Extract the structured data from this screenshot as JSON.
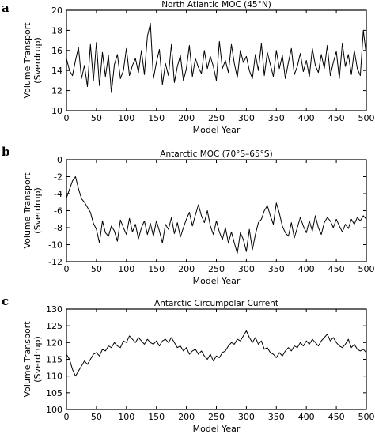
{
  "chart_data": [
    {
      "panel": "a",
      "type": "line",
      "title": "North Atlantic MOC (45°N)",
      "xlabel": "Model Year",
      "ylabel": "Volume Transport (Sverdrup)",
      "ylabel_lines": [
        "Volume Transport",
        "(Sverdrup)"
      ],
      "xlim": [
        0,
        500
      ],
      "ylim": [
        10,
        20
      ],
      "xticks": [
        0,
        50,
        100,
        150,
        200,
        250,
        300,
        350,
        400,
        450,
        500
      ],
      "yticks": [
        10,
        12,
        14,
        16,
        18,
        20
      ],
      "series": [
        {
          "x": [
            0,
            5,
            10,
            15,
            20,
            25,
            30,
            35,
            40,
            45,
            50,
            55,
            60,
            65,
            70,
            75,
            80,
            85,
            90,
            95,
            100,
            105,
            110,
            115,
            120,
            125,
            130,
            135,
            140,
            145,
            150,
            155,
            160,
            165,
            170,
            175,
            180,
            185,
            190,
            195,
            200,
            205,
            210,
            215,
            220,
            225,
            230,
            235,
            240,
            245,
            250,
            255,
            260,
            265,
            270,
            275,
            280,
            285,
            290,
            295,
            300,
            305,
            310,
            315,
            320,
            325,
            330,
            335,
            340,
            345,
            350,
            355,
            360,
            365,
            370,
            375,
            380,
            385,
            390,
            395,
            400,
            405,
            410,
            415,
            420,
            425,
            430,
            435,
            440,
            445,
            450,
            455,
            460,
            465,
            470,
            475,
            480,
            485,
            490,
            495,
            500
          ],
          "y": [
            15.2,
            14.0,
            13.5,
            15.0,
            16.3,
            13.2,
            14.5,
            12.4,
            16.6,
            13.0,
            16.8,
            12.5,
            15.8,
            13.4,
            15.5,
            11.8,
            14.6,
            15.6,
            13.2,
            14.0,
            16.2,
            13.5,
            14.5,
            15.2,
            13.8,
            16.0,
            13.6,
            17.4,
            18.7,
            13.2,
            14.8,
            16.1,
            12.6,
            14.7,
            13.5,
            16.6,
            12.8,
            14.4,
            15.5,
            13.0,
            14.2,
            16.5,
            13.4,
            15.2,
            14.3,
            13.7,
            16.0,
            14.2,
            15.4,
            14.4,
            13.0,
            16.9,
            14.2,
            15.0,
            13.8,
            16.6,
            14.7,
            13.3,
            16.0,
            14.8,
            15.4,
            14.0,
            13.2,
            15.6,
            14.0,
            16.7,
            13.5,
            15.8,
            14.6,
            13.4,
            16.0,
            14.2,
            15.5,
            13.2,
            14.8,
            16.2,
            13.6,
            14.4,
            15.7,
            13.9,
            15.0,
            13.4,
            16.2,
            14.5,
            13.8,
            15.6,
            14.2,
            16.5,
            13.5,
            14.8,
            15.9,
            13.2,
            16.7,
            14.4,
            15.6,
            13.6,
            16.0,
            14.2,
            13.5,
            18.0,
            15.5
          ]
        }
      ]
    },
    {
      "panel": "b",
      "type": "line",
      "title": "Antarctic MOC (70°S–65°S)",
      "xlabel": "Model Year",
      "ylabel": "Volume Transport (Sverdrup)",
      "ylabel_lines": [
        "Volume Transport",
        "(Sverdrup)"
      ],
      "xlim": [
        0,
        500
      ],
      "ylim": [
        -12,
        0
      ],
      "xticks": [
        0,
        50,
        100,
        150,
        200,
        250,
        300,
        350,
        400,
        450,
        500
      ],
      "yticks": [
        -12,
        -10,
        -8,
        -6,
        -4,
        -2,
        0
      ],
      "series": [
        {
          "x": [
            0,
            5,
            10,
            15,
            20,
            25,
            30,
            35,
            40,
            45,
            50,
            55,
            60,
            65,
            70,
            75,
            80,
            85,
            90,
            95,
            100,
            105,
            110,
            115,
            120,
            125,
            130,
            135,
            140,
            145,
            150,
            155,
            160,
            165,
            170,
            175,
            180,
            185,
            190,
            195,
            200,
            205,
            210,
            215,
            220,
            225,
            230,
            235,
            240,
            245,
            250,
            255,
            260,
            265,
            270,
            275,
            280,
            285,
            290,
            295,
            300,
            305,
            310,
            315,
            320,
            325,
            330,
            335,
            340,
            345,
            350,
            355,
            360,
            365,
            370,
            375,
            380,
            385,
            390,
            395,
            400,
            405,
            410,
            415,
            420,
            425,
            430,
            435,
            440,
            445,
            450,
            455,
            460,
            465,
            470,
            475,
            480,
            485,
            490,
            495,
            500
          ],
          "y": [
            -4.5,
            -3.5,
            -2.5,
            -2.0,
            -3.4,
            -4.6,
            -5.0,
            -5.6,
            -6.2,
            -7.5,
            -8.2,
            -9.8,
            -7.2,
            -8.6,
            -9.0,
            -7.8,
            -8.4,
            -9.6,
            -7.1,
            -8.0,
            -8.8,
            -6.9,
            -8.5,
            -7.6,
            -9.3,
            -8.0,
            -7.2,
            -8.8,
            -7.5,
            -9.0,
            -7.2,
            -8.4,
            -9.8,
            -7.6,
            -8.2,
            -6.8,
            -8.7,
            -7.4,
            -9.1,
            -8.0,
            -7.0,
            -6.2,
            -7.8,
            -6.5,
            -5.3,
            -6.6,
            -7.4,
            -6.0,
            -7.8,
            -8.8,
            -7.2,
            -8.5,
            -9.4,
            -8.0,
            -9.8,
            -8.5,
            -9.8,
            -11.0,
            -8.6,
            -9.4,
            -10.8,
            -8.2,
            -10.6,
            -8.8,
            -7.4,
            -7.0,
            -6.0,
            -5.4,
            -6.6,
            -7.6,
            -5.1,
            -6.3,
            -7.8,
            -8.6,
            -9.0,
            -7.4,
            -9.2,
            -8.0,
            -6.8,
            -7.8,
            -8.6,
            -7.2,
            -8.4,
            -6.6,
            -8.0,
            -8.8,
            -7.4,
            -6.8,
            -7.2,
            -8.0,
            -7.0,
            -7.8,
            -8.5,
            -7.6,
            -8.1,
            -7.0,
            -7.6,
            -6.8,
            -7.2,
            -6.6,
            -7.0
          ]
        }
      ]
    },
    {
      "panel": "c",
      "type": "line",
      "title": "Antarctic Circumpolar Current",
      "xlabel": "Model Year",
      "ylabel": "Volume Transport (Sverdrup)",
      "ylabel_lines": [
        "Volume Transport",
        "(Sverdrup)"
      ],
      "xlim": [
        0,
        500
      ],
      "ylim": [
        100,
        130
      ],
      "xticks": [
        0,
        50,
        100,
        150,
        200,
        250,
        300,
        350,
        400,
        450,
        500
      ],
      "yticks": [
        100,
        105,
        110,
        115,
        120,
        125,
        130
      ],
      "series": [
        {
          "x": [
            0,
            5,
            10,
            15,
            20,
            25,
            30,
            35,
            40,
            45,
            50,
            55,
            60,
            65,
            70,
            75,
            80,
            85,
            90,
            95,
            100,
            105,
            110,
            115,
            120,
            125,
            130,
            135,
            140,
            145,
            150,
            155,
            160,
            165,
            170,
            175,
            180,
            185,
            190,
            195,
            200,
            205,
            210,
            215,
            220,
            225,
            230,
            235,
            240,
            245,
            250,
            255,
            260,
            265,
            270,
            275,
            280,
            285,
            290,
            295,
            300,
            305,
            310,
            315,
            320,
            325,
            330,
            335,
            340,
            345,
            350,
            355,
            360,
            365,
            370,
            375,
            380,
            385,
            390,
            395,
            400,
            405,
            410,
            415,
            420,
            425,
            430,
            435,
            440,
            445,
            450,
            455,
            460,
            465,
            470,
            475,
            480,
            485,
            490,
            495,
            500
          ],
          "y": [
            116.5,
            115.0,
            112.0,
            110.0,
            111.5,
            113.0,
            114.5,
            113.5,
            115.0,
            116.5,
            117.0,
            116.0,
            118.0,
            117.5,
            119.0,
            118.5,
            120.0,
            119.0,
            118.5,
            120.5,
            120.0,
            122.0,
            121.0,
            120.0,
            121.5,
            120.5,
            119.5,
            121.0,
            120.0,
            119.5,
            120.5,
            119.0,
            120.5,
            121.0,
            120.0,
            121.5,
            120.0,
            118.5,
            119.0,
            117.5,
            118.5,
            116.5,
            117.5,
            118.0,
            116.5,
            117.5,
            116.0,
            115.0,
            116.5,
            114.5,
            116.0,
            115.5,
            117.0,
            117.5,
            119.0,
            120.0,
            119.5,
            121.0,
            120.5,
            122.0,
            123.5,
            121.5,
            120.0,
            121.5,
            119.5,
            120.5,
            118.0,
            118.5,
            117.0,
            116.5,
            115.5,
            117.0,
            116.0,
            117.5,
            118.5,
            117.5,
            119.0,
            118.5,
            120.0,
            119.0,
            120.5,
            119.5,
            121.0,
            120.0,
            119.0,
            120.5,
            121.5,
            122.5,
            120.5,
            121.5,
            120.0,
            119.0,
            118.5,
            119.5,
            121.0,
            118.5,
            119.5,
            118.0,
            117.5,
            118.0,
            117.0
          ]
        }
      ]
    }
  ]
}
